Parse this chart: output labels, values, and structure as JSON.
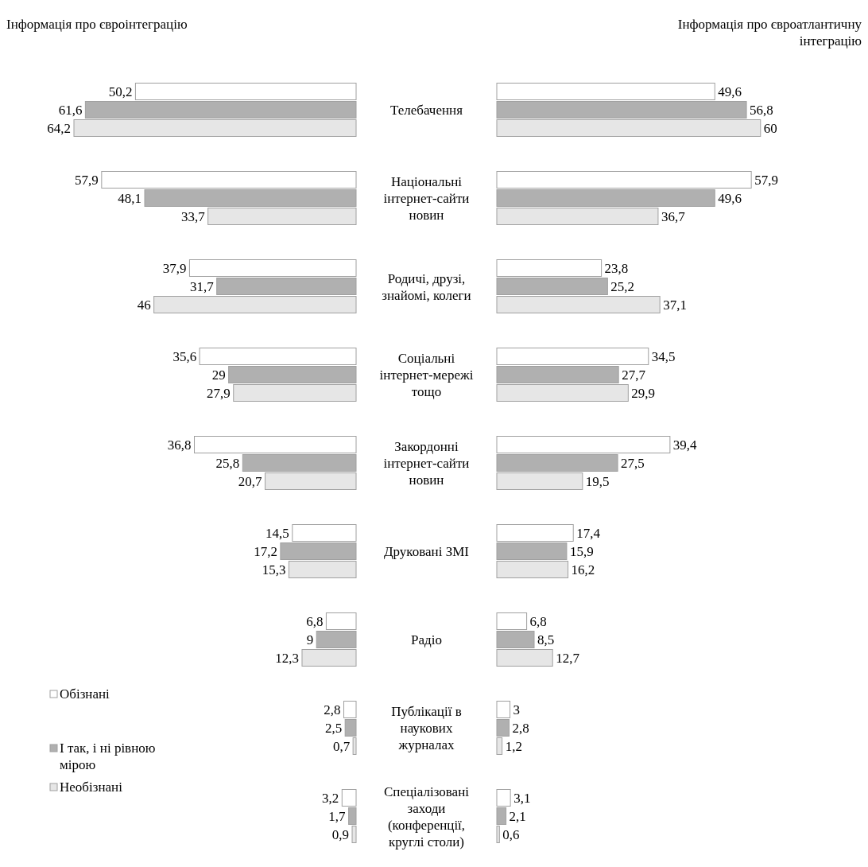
{
  "chart_data": [
    {
      "type": "bar",
      "orientation": "horizontal",
      "title": "Інформація про євроінтеграцію",
      "categories": [
        "Телебачення",
        "Національні інтернет-сайти новин",
        "Родичі, друзі, знайомі, колеги",
        "Соціальні інтернет-мережі тощо",
        "Закордонні інтернет-сайти новин",
        "Друковані ЗМІ",
        "Радіо",
        "Публікації в наукових журналах",
        "Спеціалізовані заходи (конференції, круглі столи)"
      ],
      "series": [
        {
          "name": "Обізнані",
          "color": "#ffffff",
          "values": [
            50.2,
            57.9,
            37.9,
            35.6,
            36.8,
            14.5,
            6.8,
            2.8,
            3.2
          ],
          "value_labels": [
            "50,2",
            "57,9",
            "37,9",
            "35,6",
            "36,8",
            "14,5",
            "6,8",
            "2,8",
            "3,2"
          ]
        },
        {
          "name": "І так, і ні рівною мірою",
          "color": "#b0b0b0",
          "values": [
            61.6,
            48.1,
            31.7,
            29,
            25.8,
            17.2,
            9,
            2.5,
            1.7
          ],
          "value_labels": [
            "61,6",
            "48,1",
            "31,7",
            "29",
            "25,8",
            "17,2",
            "9",
            "2,5",
            "1,7"
          ]
        },
        {
          "name": "Необізнані",
          "color": "#e6e6e6",
          "values": [
            64.2,
            33.7,
            46,
            27.9,
            20.7,
            15.3,
            12.3,
            0.7,
            0.9
          ],
          "value_labels": [
            "64,2",
            "33,7",
            "46",
            "27,9",
            "20,7",
            "15,3",
            "12,3",
            "0,7",
            "0,9"
          ]
        }
      ],
      "legend": "bottom left"
    },
    {
      "type": "bar",
      "orientation": "horizontal",
      "title": "Інформація про євроатлантичну інтеграцію",
      "categories": [
        null,
        null,
        null,
        null,
        null,
        null,
        null,
        null,
        null
      ],
      "series": [
        {
          "color": "#ffffff",
          "values": [
            49.6,
            57.9,
            23.8,
            34.5,
            39.4,
            17.4,
            6.8,
            3,
            3.1
          ],
          "value_labels": [
            "49,6",
            "57,9",
            "23,8",
            "34,5",
            "39,4",
            "17,4",
            "6,8",
            "3",
            "3,1"
          ]
        },
        {
          "color": "#b0b0b0",
          "values": [
            56.8,
            49.6,
            25.2,
            27.7,
            27.5,
            15.9,
            8.5,
            2.8,
            2.1
          ],
          "value_labels": [
            "56,8",
            "49,6",
            "25,2",
            "27,7",
            "27,5",
            "15,9",
            "8,5",
            "2,8",
            "2,1"
          ]
        },
        {
          "color": "#e6e6e6",
          "values": [
            60,
            36.7,
            37.1,
            29.9,
            19.5,
            16.2,
            12.7,
            1.2,
            0.6
          ],
          "value_labels": [
            "60",
            "36,7",
            "37,1",
            "29,9",
            "19,5",
            "16,2",
            "12,7",
            "1,2",
            "0,6"
          ]
        }
      ]
    }
  ]
}
